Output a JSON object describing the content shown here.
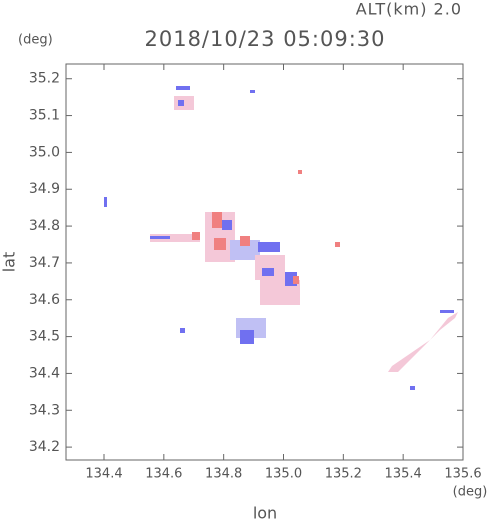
{
  "chart_data": {
    "type": "map",
    "title": "2018/10/23 05:09:30",
    "altitude_label": "ALT(km) 2.0",
    "y_unit": "(deg)",
    "x_unit": "(deg)",
    "xlabel": "lon",
    "ylabel": "lat",
    "xlim": [
      134.273,
      135.6
    ],
    "ylim": [
      34.165,
      35.24
    ],
    "xticks": [
      134.4,
      134.6,
      134.8,
      {
        "value": 135.0,
        "label": "135.0"
      },
      135.2,
      135.4,
      135.6
    ],
    "yticks": [
      34.2,
      34.3,
      34.4,
      34.5,
      34.6,
      34.7,
      34.8,
      34.9,
      {
        "value": 35.0,
        "label": "35.0"
      },
      35.1,
      35.2
    ]
  }
}
